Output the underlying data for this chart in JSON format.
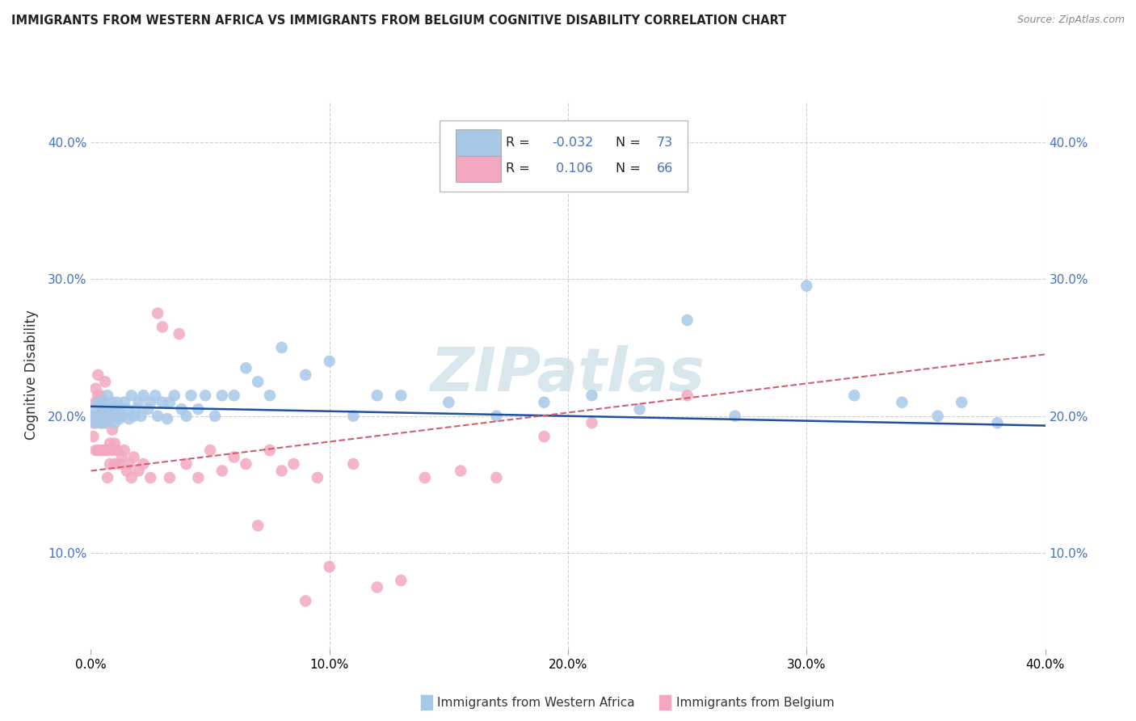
{
  "title": "IMMIGRANTS FROM WESTERN AFRICA VS IMMIGRANTS FROM BELGIUM COGNITIVE DISABILITY CORRELATION CHART",
  "source": "Source: ZipAtlas.com",
  "xlabel_blue": "Immigrants from Western Africa",
  "xlabel_pink": "Immigrants from Belgium",
  "ylabel": "Cognitive Disability",
  "watermark": "ZIPatlas",
  "xlim": [
    0.0,
    0.4
  ],
  "ylim": [
    0.03,
    0.43
  ],
  "xticks": [
    0.0,
    0.1,
    0.2,
    0.3,
    0.4
  ],
  "yticks": [
    0.1,
    0.2,
    0.3,
    0.4
  ],
  "legend_blue_R": "-0.032",
  "legend_blue_N": "73",
  "legend_pink_R": "0.106",
  "legend_pink_N": "66",
  "blue_color": "#a8c8e8",
  "pink_color": "#f4a8c0",
  "blue_line_color": "#2050a0",
  "pink_line_color": "#d06070",
  "background_color": "#ffffff",
  "grid_color": "#d0d0d0",
  "blue_line_y0": 0.207,
  "blue_line_y1": 0.193,
  "pink_line_y0": 0.16,
  "pink_line_y1": 0.245,
  "blue_scatter_x": [
    0.001,
    0.002,
    0.002,
    0.003,
    0.003,
    0.004,
    0.004,
    0.005,
    0.005,
    0.005,
    0.006,
    0.006,
    0.007,
    0.007,
    0.007,
    0.008,
    0.008,
    0.009,
    0.009,
    0.01,
    0.01,
    0.011,
    0.011,
    0.012,
    0.012,
    0.013,
    0.014,
    0.015,
    0.016,
    0.017,
    0.018,
    0.019,
    0.02,
    0.021,
    0.022,
    0.024,
    0.025,
    0.027,
    0.028,
    0.03,
    0.032,
    0.033,
    0.035,
    0.038,
    0.04,
    0.042,
    0.045,
    0.048,
    0.052,
    0.055,
    0.06,
    0.065,
    0.07,
    0.075,
    0.08,
    0.09,
    0.1,
    0.11,
    0.12,
    0.13,
    0.15,
    0.17,
    0.19,
    0.21,
    0.23,
    0.25,
    0.27,
    0.3,
    0.32,
    0.34,
    0.355,
    0.365,
    0.38
  ],
  "blue_scatter_y": [
    0.2,
    0.195,
    0.205,
    0.198,
    0.21,
    0.195,
    0.202,
    0.198,
    0.205,
    0.21,
    0.195,
    0.208,
    0.2,
    0.205,
    0.215,
    0.198,
    0.205,
    0.2,
    0.21,
    0.195,
    0.205,
    0.2,
    0.21,
    0.198,
    0.205,
    0.2,
    0.21,
    0.205,
    0.198,
    0.215,
    0.2,
    0.205,
    0.21,
    0.2,
    0.215,
    0.205,
    0.21,
    0.215,
    0.2,
    0.21,
    0.198,
    0.21,
    0.215,
    0.205,
    0.2,
    0.215,
    0.205,
    0.215,
    0.2,
    0.215,
    0.215,
    0.235,
    0.225,
    0.215,
    0.25,
    0.23,
    0.24,
    0.2,
    0.215,
    0.215,
    0.21,
    0.2,
    0.21,
    0.215,
    0.205,
    0.27,
    0.2,
    0.295,
    0.215,
    0.21,
    0.2,
    0.21,
    0.195
  ],
  "pink_scatter_x": [
    0.001,
    0.001,
    0.001,
    0.002,
    0.002,
    0.002,
    0.002,
    0.003,
    0.003,
    0.003,
    0.003,
    0.004,
    0.004,
    0.004,
    0.005,
    0.005,
    0.005,
    0.006,
    0.006,
    0.006,
    0.007,
    0.007,
    0.007,
    0.008,
    0.008,
    0.009,
    0.009,
    0.01,
    0.01,
    0.011,
    0.012,
    0.013,
    0.014,
    0.015,
    0.016,
    0.017,
    0.018,
    0.02,
    0.022,
    0.025,
    0.028,
    0.03,
    0.033,
    0.037,
    0.04,
    0.045,
    0.05,
    0.055,
    0.06,
    0.065,
    0.07,
    0.075,
    0.08,
    0.085,
    0.09,
    0.095,
    0.1,
    0.11,
    0.12,
    0.13,
    0.14,
    0.155,
    0.17,
    0.19,
    0.21,
    0.25
  ],
  "pink_scatter_y": [
    0.2,
    0.185,
    0.195,
    0.22,
    0.21,
    0.195,
    0.175,
    0.23,
    0.215,
    0.2,
    0.175,
    0.215,
    0.195,
    0.175,
    0.21,
    0.195,
    0.175,
    0.225,
    0.2,
    0.175,
    0.2,
    0.175,
    0.155,
    0.18,
    0.165,
    0.19,
    0.175,
    0.18,
    0.165,
    0.175,
    0.165,
    0.17,
    0.175,
    0.16,
    0.165,
    0.155,
    0.17,
    0.16,
    0.165,
    0.155,
    0.275,
    0.265,
    0.155,
    0.26,
    0.165,
    0.155,
    0.175,
    0.16,
    0.17,
    0.165,
    0.12,
    0.175,
    0.16,
    0.165,
    0.065,
    0.155,
    0.09,
    0.165,
    0.075,
    0.08,
    0.155,
    0.16,
    0.155,
    0.185,
    0.195,
    0.215
  ]
}
